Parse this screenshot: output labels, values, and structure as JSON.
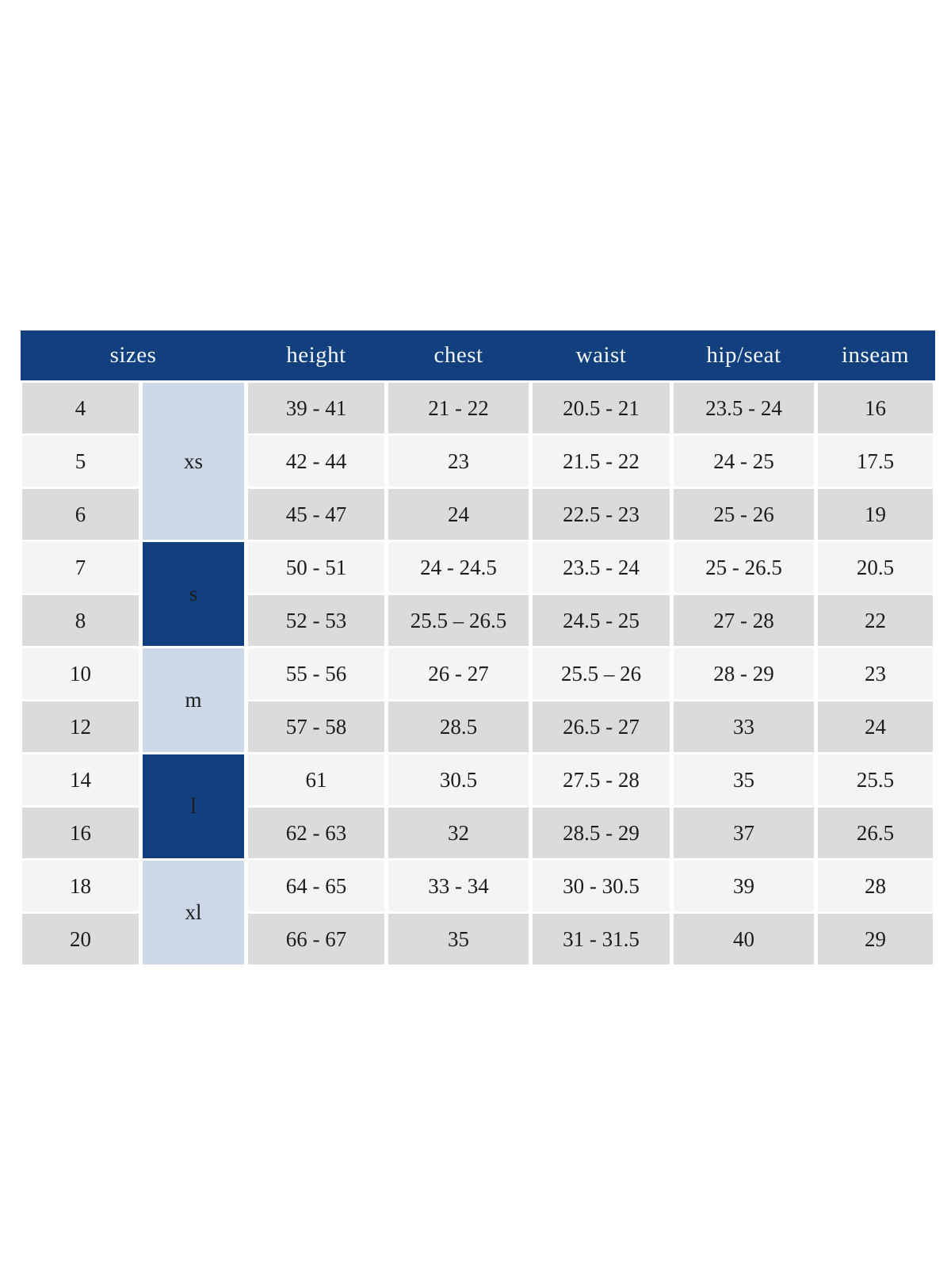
{
  "table": {
    "columns": [
      {
        "label": "sizes",
        "span": 2,
        "key": "sizes"
      },
      {
        "label": "height",
        "span": 1,
        "key": "height"
      },
      {
        "label": "chest",
        "span": 1,
        "key": "chest"
      },
      {
        "label": "waist",
        "span": 1,
        "key": "waist"
      },
      {
        "label": "hip/seat",
        "span": 1,
        "key": "hip_seat"
      },
      {
        "label": "inseam",
        "span": 1,
        "key": "inseam"
      }
    ],
    "groups": [
      {
        "label": "xs",
        "start": 0,
        "span": 3,
        "theme": "light"
      },
      {
        "label": "s",
        "start": 3,
        "span": 2,
        "theme": "dark"
      },
      {
        "label": "m",
        "start": 5,
        "span": 2,
        "theme": "light"
      },
      {
        "label": "l",
        "start": 7,
        "span": 2,
        "theme": "dark"
      },
      {
        "label": "xl",
        "start": 9,
        "span": 2,
        "theme": "light"
      }
    ],
    "rows": [
      {
        "size": "4",
        "height": "39 - 41",
        "chest": "21 - 22",
        "waist": "20.5 - 21",
        "hip_seat": "23.5 - 24",
        "inseam": "16"
      },
      {
        "size": "5",
        "height": "42 - 44",
        "chest": "23",
        "waist": "21.5 - 22",
        "hip_seat": "24 - 25",
        "inseam": "17.5"
      },
      {
        "size": "6",
        "height": "45 - 47",
        "chest": "24",
        "waist": "22.5 - 23",
        "hip_seat": "25 - 26",
        "inseam": "19"
      },
      {
        "size": "7",
        "height": "50 - 51",
        "chest": "24 - 24.5",
        "waist": "23.5 - 24",
        "hip_seat": "25 - 26.5",
        "inseam": "20.5"
      },
      {
        "size": "8",
        "height": "52 - 53",
        "chest": "25.5 – 26.5",
        "waist": "24.5 - 25",
        "hip_seat": "27 - 28",
        "inseam": "22"
      },
      {
        "size": "10",
        "height": "55 - 56",
        "chest": "26 - 27",
        "waist": "25.5 – 26",
        "hip_seat": "28 - 29",
        "inseam": "23"
      },
      {
        "size": "12",
        "height": "57 - 58",
        "chest": "28.5",
        "waist": "26.5 - 27",
        "hip_seat": "33",
        "inseam": "24"
      },
      {
        "size": "14",
        "height": "61",
        "chest": "30.5",
        "waist": "27.5 - 28",
        "hip_seat": "35",
        "inseam": "25.5"
      },
      {
        "size": "16",
        "height": "62 - 63",
        "chest": "32",
        "waist": "28.5 - 29",
        "hip_seat": "37",
        "inseam": "26.5"
      },
      {
        "size": "18",
        "height": "64 - 65",
        "chest": "33 - 34",
        "waist": "30 - 30.5",
        "hip_seat": "39",
        "inseam": "28"
      },
      {
        "size": "20",
        "height": "66 - 67",
        "chest": "35",
        "waist": "31 - 31.5",
        "hip_seat": "40",
        "inseam": "29"
      }
    ]
  },
  "colors": {
    "header_bg": "#12407e",
    "header_text": "#f3f6fa",
    "group_light_bg": "#ccd8e7",
    "group_dark_bg": "#12407e",
    "row_gray": "#dbdbdb",
    "row_light": "#f4f4f4",
    "cell_text": "#1c1c1c"
  }
}
